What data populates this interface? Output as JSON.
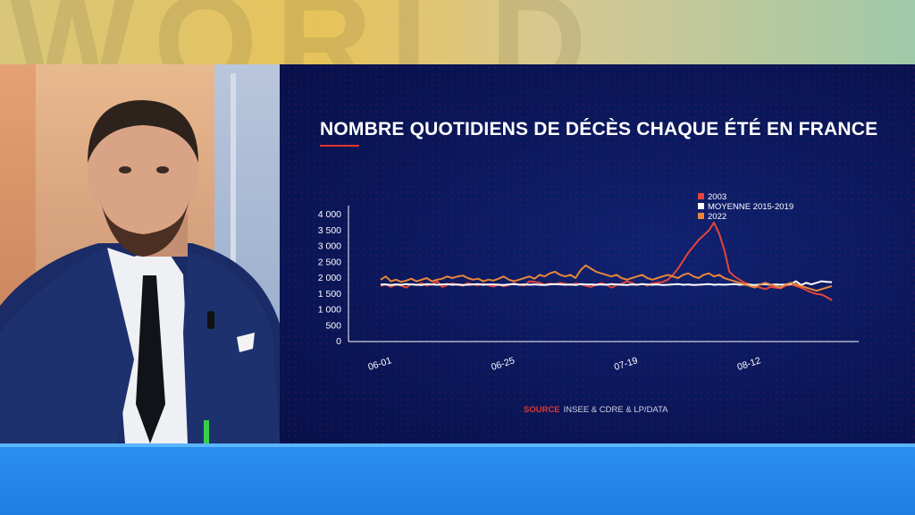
{
  "chart_data": {
    "type": "line",
    "title": "NOMBRE QUOTIDIENS DE DÉCÈS CHAQUE ÉTÉ EN FRANCE",
    "ylim": [
      0,
      4000
    ],
    "yticks": [
      "4 000",
      "3 500",
      "3 000",
      "2 500",
      "2 000",
      "1 500",
      "1 000",
      "500",
      "0"
    ],
    "xticks": [
      "06-01",
      "06-25",
      "07-19",
      "08-12"
    ],
    "legend_position": "top-right",
    "series": [
      {
        "name": "2003",
        "color": "#e5453a",
        "values": [
          1750,
          1800,
          1720,
          1800,
          1760,
          1700,
          1810,
          1780,
          1840,
          1760,
          1800,
          1900,
          1720,
          1780,
          1830,
          1790,
          1760,
          1840,
          1800,
          1770,
          1820,
          1780,
          1730,
          1800,
          1740,
          1780,
          1830,
          1800,
          1760,
          1900,
          1880,
          1850,
          1790,
          1830,
          1800,
          1850,
          1820,
          1780,
          1830,
          1800,
          1760,
          1720,
          1790,
          1840,
          1800,
          1700,
          1780,
          1820,
          1900,
          1850,
          1780,
          1820,
          1760,
          1830,
          1850,
          1880,
          1950,
          2100,
          2300,
          2550,
          2800,
          3000,
          3200,
          3350,
          3500,
          3750,
          3400,
          2900,
          2200,
          2050,
          1950,
          1850,
          1800,
          1750,
          1700,
          1650,
          1720,
          1700,
          1680,
          1760,
          1800,
          1750,
          1700,
          1620,
          1550,
          1500,
          1480,
          1400,
          1300
        ]
      },
      {
        "name": "MOYENNE 2015-2019",
        "color": "#ffffff",
        "values": [
          1800,
          1800,
          1780,
          1800,
          1790,
          1810,
          1800,
          1790,
          1780,
          1810,
          1800,
          1790,
          1800,
          1810,
          1790,
          1800,
          1780,
          1790,
          1800,
          1810,
          1790,
          1800,
          1800,
          1790,
          1780,
          1800,
          1810,
          1790,
          1800,
          1790,
          1800,
          1790,
          1780,
          1800,
          1810,
          1800,
          1790,
          1800,
          1780,
          1810,
          1800,
          1800,
          1790,
          1800,
          1790,
          1810,
          1800,
          1790,
          1780,
          1800,
          1790,
          1810,
          1800,
          1790,
          1800,
          1780,
          1790,
          1800,
          1810,
          1790,
          1800,
          1780,
          1790,
          1800,
          1810,
          1790,
          1800,
          1790,
          1800,
          1810,
          1790,
          1800,
          1790,
          1780,
          1800,
          1810,
          1790,
          1800,
          1790,
          1800,
          1810,
          1900,
          1780,
          1850,
          1800,
          1850,
          1900,
          1880,
          1870
        ]
      },
      {
        "name": "2022",
        "color": "#e8873a",
        "values": [
          1950,
          2050,
          1900,
          1950,
          1880,
          1920,
          1980,
          1900,
          1950,
          2000,
          1900,
          1950,
          1980,
          2050,
          2000,
          2050,
          2080,
          2000,
          1950,
          1980,
          1900,
          1950,
          1920,
          1980,
          2050,
          1950,
          1900,
          1950,
          2000,
          2050,
          1980,
          2100,
          2050,
          2150,
          2200,
          2100,
          2050,
          2100,
          2000,
          2250,
          2400,
          2300,
          2200,
          2150,
          2100,
          2050,
          2100,
          2000,
          1950,
          2000,
          2050,
          2100,
          2000,
          1950,
          2000,
          2050,
          2100,
          2050,
          2000,
          2100,
          2150,
          2050,
          2000,
          2100,
          2150,
          2050,
          2100,
          2000,
          1950,
          1900,
          1850,
          1800,
          1750,
          1700,
          1800,
          1850,
          1800,
          1750,
          1700,
          1800,
          1850,
          1800,
          1750,
          1700,
          1650,
          1600,
          1650,
          1700,
          1750
        ]
      }
    ]
  },
  "source": {
    "label": "SOURCE",
    "text": "INSEE & CDRE & LP/DATA"
  }
}
